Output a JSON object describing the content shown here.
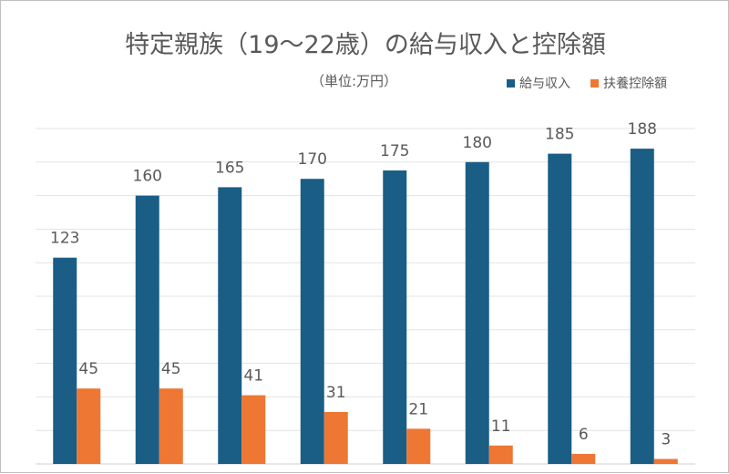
{
  "chart_data": {
    "type": "bar",
    "title": "特定親族（19〜22歳）の給与収入と控除額",
    "subtitle": "（単位:万円）",
    "categories": [
      "",
      "",
      "",
      "",
      "",
      "",
      "",
      ""
    ],
    "series": [
      {
        "name": "給与収入",
        "color": "#1a5e86",
        "values": [
          123,
          160,
          165,
          170,
          175,
          180,
          185,
          188
        ]
      },
      {
        "name": "扶養控除額",
        "color": "#ee7733",
        "values": [
          45,
          45,
          41,
          31,
          21,
          11,
          6,
          3
        ]
      }
    ],
    "ylim": [
      0,
      200
    ],
    "grid": true,
    "legend_position": "top-right",
    "xlabel": "",
    "ylabel": ""
  }
}
